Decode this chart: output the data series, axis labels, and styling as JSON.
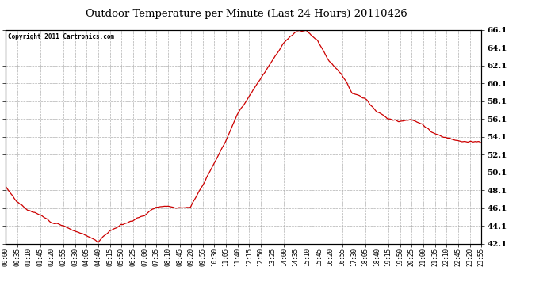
{
  "title": "Outdoor Temperature per Minute (Last 24 Hours) 20110426",
  "copyright_text": "Copyright 2011 Cartronics.com",
  "line_color": "#cc0000",
  "background_color": "#ffffff",
  "plot_bg_color": "#ffffff",
  "grid_color": "#b0b0b0",
  "ylim": [
    42.1,
    66.1
  ],
  "yticks": [
    42.1,
    44.1,
    46.1,
    48.1,
    50.1,
    52.1,
    54.1,
    56.1,
    58.1,
    60.1,
    62.1,
    64.1,
    66.1
  ],
  "xtick_labels": [
    "00:00",
    "00:35",
    "01:10",
    "01:45",
    "02:20",
    "02:55",
    "03:30",
    "04:05",
    "04:40",
    "05:15",
    "05:50",
    "06:25",
    "07:00",
    "07:35",
    "08:10",
    "08:45",
    "09:20",
    "09:55",
    "10:30",
    "11:05",
    "11:40",
    "12:15",
    "12:50",
    "13:25",
    "14:00",
    "14:35",
    "15:10",
    "15:45",
    "16:20",
    "16:55",
    "17:30",
    "18:05",
    "18:40",
    "19:15",
    "19:50",
    "20:25",
    "21:00",
    "21:35",
    "22:10",
    "22:45",
    "23:20",
    "23:55"
  ],
  "key_times_min": [
    0,
    35,
    70,
    105,
    140,
    175,
    210,
    245,
    280,
    315,
    350,
    385,
    420,
    455,
    490,
    525,
    560,
    595,
    630,
    665,
    700,
    735,
    770,
    805,
    840,
    875,
    910,
    945,
    980,
    1015,
    1050,
    1085,
    1120,
    1155,
    1190,
    1225,
    1260,
    1295,
    1330,
    1365,
    1400,
    1435
  ],
  "key_temps": [
    48.5,
    46.8,
    45.8,
    45.3,
    44.5,
    44.1,
    43.5,
    43.0,
    42.3,
    43.5,
    44.2,
    44.7,
    45.3,
    46.2,
    46.3,
    46.1,
    46.2,
    48.5,
    51.0,
    53.5,
    56.5,
    58.5,
    60.5,
    62.5,
    64.5,
    65.8,
    66.0,
    64.8,
    62.5,
    61.2,
    59.0,
    58.5,
    57.0,
    56.2,
    55.8,
    56.0,
    55.5,
    54.5,
    54.0,
    53.7,
    53.5,
    53.5
  ]
}
